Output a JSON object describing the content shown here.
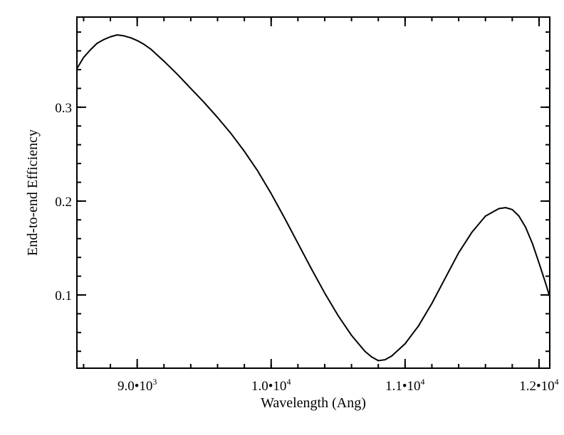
{
  "chart_data": {
    "type": "line",
    "title": "",
    "xlabel": "Wavelength (Ang)",
    "ylabel": "End-to-end Efficiency",
    "xlim": [
      8550,
      12080
    ],
    "ylim": [
      0.022,
      0.396
    ],
    "grid": false,
    "legend": "none",
    "line_color": "#000000",
    "x_ticks": [
      {
        "value": 9000,
        "mantissa": "9.0•10",
        "exponent": "3"
      },
      {
        "value": 10000,
        "mantissa": "1.0•10",
        "exponent": "4"
      },
      {
        "value": 11000,
        "mantissa": "1.1•10",
        "exponent": "4"
      },
      {
        "value": 12000,
        "mantissa": "1.2•10",
        "exponent": "4"
      }
    ],
    "x_minor_step": 200,
    "y_ticks": [
      {
        "value": 0.1,
        "label": "0.1"
      },
      {
        "value": 0.2,
        "label": "0.2"
      },
      {
        "value": 0.3,
        "label": "0.3"
      }
    ],
    "y_minor_step": 0.02,
    "series": [
      {
        "x": [
          8550,
          8600,
          8650,
          8700,
          8750,
          8800,
          8850,
          8900,
          8950,
          9000,
          9050,
          9100,
          9200,
          9300,
          9400,
          9500,
          9600,
          9700,
          9800,
          9900,
          10000,
          10100,
          10200,
          10300,
          10400,
          10500,
          10600,
          10700,
          10750,
          10800,
          10850,
          10900,
          11000,
          11100,
          11200,
          11300,
          11400,
          11500,
          11600,
          11700,
          11750,
          11800,
          11850,
          11900,
          11950,
          12000,
          12050,
          12080
        ],
        "y": [
          0.341,
          0.353,
          0.361,
          0.368,
          0.372,
          0.375,
          0.377,
          0.376,
          0.374,
          0.371,
          0.367,
          0.362,
          0.349,
          0.335,
          0.32,
          0.305,
          0.289,
          0.272,
          0.253,
          0.232,
          0.208,
          0.182,
          0.155,
          0.128,
          0.102,
          0.078,
          0.057,
          0.04,
          0.034,
          0.03,
          0.031,
          0.035,
          0.048,
          0.067,
          0.091,
          0.118,
          0.145,
          0.167,
          0.184,
          0.192,
          0.193,
          0.191,
          0.184,
          0.172,
          0.155,
          0.134,
          0.112,
          0.098
        ]
      }
    ]
  }
}
